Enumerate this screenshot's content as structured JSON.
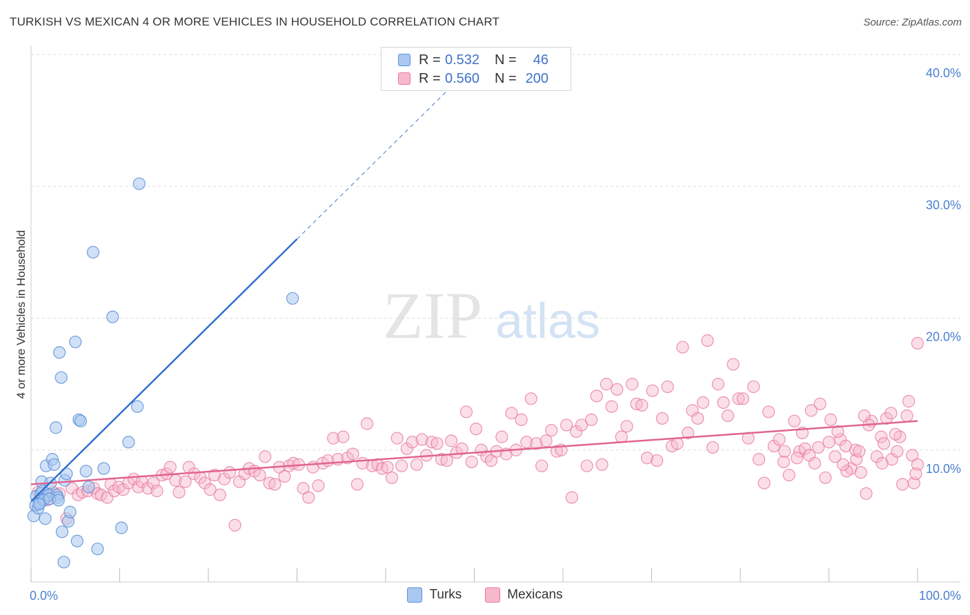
{
  "title": "TURKISH VS MEXICAN 4 OR MORE VEHICLES IN HOUSEHOLD CORRELATION CHART",
  "source": "Source: ZipAtlas.com",
  "watermark": {
    "zip": "ZIP",
    "atlas": "atlas"
  },
  "legend": {
    "rows": [
      {
        "r_label": "R =",
        "r_value": "0.532",
        "n_label": "N =",
        "n_value": "46"
      },
      {
        "r_label": "R =",
        "r_value": "0.560",
        "n_label": "N =",
        "n_value": "200"
      }
    ]
  },
  "bottom_legend": [
    "Turks",
    "Mexicans"
  ],
  "colors": {
    "turks_fill": "#aac8f0",
    "turks_stroke": "#5b8fd6",
    "turks_line": "#2f6fd0",
    "mexicans_fill": "#f7b8cb",
    "mexicans_stroke": "#e8799b",
    "mexicans_line": "#e0648e",
    "tick_text": "#4a7fd0",
    "grid": "#dddddd"
  },
  "chart_data": {
    "type": "scatter",
    "title": "TURKISH VS MEXICAN 4 OR MORE VEHICLES IN HOUSEHOLD CORRELATION CHART",
    "xlabel": "",
    "ylabel": "4 or more Vehicles in Household",
    "xlim": [
      0,
      100
    ],
    "ylim": [
      0,
      40
    ],
    "x_tick_labels": [
      "0.0%",
      "100.0%"
    ],
    "y_ticks": [
      10,
      20,
      30,
      40
    ],
    "y_tick_labels": [
      "10.0%",
      "20.0%",
      "30.0%",
      "40.0%"
    ],
    "grid": "horizontal dashed",
    "series": [
      {
        "name": "Turks",
        "R": 0.532,
        "N": 46,
        "trend": {
          "x0": 0,
          "y0": 6.1,
          "x1": 30,
          "y1": 26.0,
          "dashed_to": {
            "x": 100,
            "y": 72.5
          }
        },
        "points": [
          [
            0.3,
            5.0
          ],
          [
            0.5,
            5.8
          ],
          [
            0.6,
            6.5
          ],
          [
            0.8,
            5.6
          ],
          [
            1.0,
            6.0
          ],
          [
            1.1,
            6.7
          ],
          [
            1.2,
            7.6
          ],
          [
            1.3,
            6.9
          ],
          [
            1.5,
            6.3
          ],
          [
            1.6,
            4.8
          ],
          [
            1.7,
            8.8
          ],
          [
            1.9,
            6.5
          ],
          [
            2.0,
            6.6
          ],
          [
            2.2,
            7.5
          ],
          [
            2.4,
            9.3
          ],
          [
            2.6,
            8.9
          ],
          [
            2.8,
            11.7
          ],
          [
            2.9,
            6.6
          ],
          [
            3.0,
            6.4
          ],
          [
            3.2,
            17.4
          ],
          [
            3.4,
            15.5
          ],
          [
            3.5,
            3.8
          ],
          [
            3.7,
            1.5
          ],
          [
            3.8,
            7.7
          ],
          [
            4.0,
            8.2
          ],
          [
            4.2,
            4.6
          ],
          [
            4.4,
            5.3
          ],
          [
            5.0,
            18.2
          ],
          [
            5.2,
            3.1
          ],
          [
            5.4,
            12.3
          ],
          [
            5.6,
            12.2
          ],
          [
            6.2,
            8.4
          ],
          [
            6.5,
            7.2
          ],
          [
            7.0,
            25.0
          ],
          [
            7.5,
            2.5
          ],
          [
            8.2,
            8.6
          ],
          [
            9.2,
            20.1
          ],
          [
            10.2,
            4.1
          ],
          [
            11.0,
            10.6
          ],
          [
            12.0,
            13.3
          ],
          [
            12.2,
            30.2
          ],
          [
            29.5,
            21.5
          ],
          [
            1.4,
            6.2
          ],
          [
            2.1,
            6.3
          ],
          [
            3.1,
            6.2
          ],
          [
            0.9,
            5.9
          ]
        ]
      },
      {
        "name": "Mexicans",
        "R": 0.56,
        "N": 200,
        "trend": {
          "x0": 0,
          "y0": 7.4,
          "x1": 100,
          "y1": 12.2
        },
        "points": [
          [
            0.8,
            6.8
          ],
          [
            1.2,
            6.4
          ],
          [
            1.8,
            6.2
          ],
          [
            2.5,
            6.8
          ],
          [
            3.2,
            6.7
          ],
          [
            4.0,
            4.8
          ],
          [
            4.6,
            7.1
          ],
          [
            5.3,
            6.6
          ],
          [
            5.8,
            6.8
          ],
          [
            6.4,
            6.9
          ],
          [
            7.1,
            7.1
          ],
          [
            7.5,
            6.7
          ],
          [
            7.9,
            6.6
          ],
          [
            8.6,
            6.4
          ],
          [
            9.0,
            7.4
          ],
          [
            9.4,
            6.9
          ],
          [
            9.9,
            7.2
          ],
          [
            10.4,
            7.0
          ],
          [
            11.0,
            7.5
          ],
          [
            11.6,
            7.8
          ],
          [
            12.1,
            7.2
          ],
          [
            12.5,
            7.6
          ],
          [
            13.2,
            7.1
          ],
          [
            13.8,
            7.5
          ],
          [
            14.2,
            6.9
          ],
          [
            14.8,
            8.1
          ],
          [
            15.3,
            8.2
          ],
          [
            15.7,
            8.7
          ],
          [
            16.3,
            7.7
          ],
          [
            16.7,
            6.8
          ],
          [
            17.4,
            7.6
          ],
          [
            17.8,
            8.7
          ],
          [
            18.4,
            8.2
          ],
          [
            19.1,
            7.9
          ],
          [
            19.6,
            7.5
          ],
          [
            20.2,
            7.0
          ],
          [
            20.7,
            8.1
          ],
          [
            21.3,
            6.6
          ],
          [
            21.8,
            7.8
          ],
          [
            22.4,
            8.3
          ],
          [
            23.0,
            4.3
          ],
          [
            23.5,
            7.6
          ],
          [
            24.1,
            8.2
          ],
          [
            24.6,
            8.6
          ],
          [
            25.2,
            8.4
          ],
          [
            25.8,
            8.1
          ],
          [
            26.4,
            9.5
          ],
          [
            26.9,
            7.5
          ],
          [
            27.5,
            7.4
          ],
          [
            28.0,
            8.7
          ],
          [
            28.6,
            8.0
          ],
          [
            29.1,
            8.8
          ],
          [
            29.6,
            9.0
          ],
          [
            30.2,
            8.9
          ],
          [
            30.7,
            7.1
          ],
          [
            31.3,
            6.4
          ],
          [
            31.8,
            8.7
          ],
          [
            32.4,
            7.3
          ],
          [
            32.9,
            9.0
          ],
          [
            33.5,
            9.2
          ],
          [
            34.1,
            10.9
          ],
          [
            34.6,
            9.3
          ],
          [
            35.2,
            11.0
          ],
          [
            35.7,
            9.4
          ],
          [
            36.3,
            9.7
          ],
          [
            36.8,
            7.4
          ],
          [
            37.4,
            9.0
          ],
          [
            37.9,
            12.0
          ],
          [
            38.5,
            8.8
          ],
          [
            39.1,
            8.9
          ],
          [
            39.6,
            8.6
          ],
          [
            40.2,
            8.7
          ],
          [
            40.7,
            7.9
          ],
          [
            41.3,
            10.9
          ],
          [
            41.8,
            8.8
          ],
          [
            42.4,
            10.1
          ],
          [
            43.0,
            10.6
          ],
          [
            43.5,
            8.9
          ],
          [
            44.1,
            10.8
          ],
          [
            44.6,
            9.6
          ],
          [
            45.2,
            10.6
          ],
          [
            45.8,
            10.5
          ],
          [
            46.3,
            9.3
          ],
          [
            46.9,
            9.2
          ],
          [
            47.4,
            10.7
          ],
          [
            48.0,
            9.8
          ],
          [
            48.6,
            10.1
          ],
          [
            49.1,
            12.9
          ],
          [
            49.7,
            9.1
          ],
          [
            50.2,
            11.6
          ],
          [
            50.8,
            10.0
          ],
          [
            51.4,
            9.5
          ],
          [
            51.9,
            9.2
          ],
          [
            52.5,
            9.9
          ],
          [
            53.1,
            11.0
          ],
          [
            53.6,
            9.7
          ],
          [
            54.2,
            12.8
          ],
          [
            54.7,
            10.0
          ],
          [
            55.3,
            12.3
          ],
          [
            55.9,
            10.6
          ],
          [
            56.4,
            13.9
          ],
          [
            57.0,
            10.5
          ],
          [
            57.6,
            8.8
          ],
          [
            58.1,
            10.7
          ],
          [
            58.7,
            11.5
          ],
          [
            59.3,
            9.9
          ],
          [
            59.8,
            10.0
          ],
          [
            60.4,
            11.9
          ],
          [
            61.0,
            6.4
          ],
          [
            61.5,
            11.4
          ],
          [
            62.1,
            11.9
          ],
          [
            62.7,
            8.8
          ],
          [
            63.2,
            12.3
          ],
          [
            63.8,
            14.1
          ],
          [
            64.4,
            8.9
          ],
          [
            64.9,
            15.0
          ],
          [
            65.5,
            13.3
          ],
          [
            66.1,
            14.6
          ],
          [
            66.6,
            11.0
          ],
          [
            67.2,
            11.8
          ],
          [
            67.8,
            15.0
          ],
          [
            68.3,
            13.5
          ],
          [
            68.9,
            13.4
          ],
          [
            69.5,
            9.4
          ],
          [
            70.1,
            14.5
          ],
          [
            70.6,
            9.2
          ],
          [
            71.2,
            12.4
          ],
          [
            71.8,
            14.8
          ],
          [
            72.3,
            10.3
          ],
          [
            72.9,
            10.5
          ],
          [
            73.5,
            17.8
          ],
          [
            74.1,
            11.3
          ],
          [
            74.6,
            13.0
          ],
          [
            75.2,
            12.4
          ],
          [
            75.8,
            13.6
          ],
          [
            76.3,
            18.3
          ],
          [
            76.9,
            10.2
          ],
          [
            77.5,
            15.0
          ],
          [
            78.1,
            13.6
          ],
          [
            78.6,
            12.6
          ],
          [
            79.2,
            16.5
          ],
          [
            79.8,
            13.9
          ],
          [
            80.3,
            13.9
          ],
          [
            80.9,
            10.9
          ],
          [
            81.5,
            14.8
          ],
          [
            82.1,
            9.3
          ],
          [
            82.7,
            7.5
          ],
          [
            83.2,
            12.9
          ],
          [
            83.8,
            10.3
          ],
          [
            84.4,
            10.8
          ],
          [
            84.9,
            9.1
          ],
          [
            85.5,
            8.1
          ],
          [
            86.1,
            12.2
          ],
          [
            86.7,
            9.9
          ],
          [
            87.3,
            10.1
          ],
          [
            87.8,
            9.6
          ],
          [
            88.4,
            9.0
          ],
          [
            89.0,
            13.5
          ],
          [
            89.6,
            7.9
          ],
          [
            90.2,
            12.3
          ],
          [
            90.7,
            9.5
          ],
          [
            91.3,
            10.8
          ],
          [
            91.9,
            10.3
          ],
          [
            92.5,
            8.6
          ],
          [
            93.1,
            9.3
          ],
          [
            93.6,
            8.3
          ],
          [
            94.2,
            6.7
          ],
          [
            94.8,
            12.2
          ],
          [
            95.4,
            9.5
          ],
          [
            95.9,
            11.0
          ],
          [
            96.5,
            12.4
          ],
          [
            97.1,
            9.3
          ],
          [
            97.7,
            9.9
          ],
          [
            98.3,
            7.4
          ],
          [
            98.8,
            12.6
          ],
          [
            99.4,
            9.6
          ],
          [
            100.0,
            8.9
          ],
          [
            85.0,
            9.9
          ],
          [
            87.0,
            11.3
          ],
          [
            88.0,
            13.0
          ],
          [
            91.0,
            11.4
          ],
          [
            92.0,
            8.4
          ],
          [
            93.0,
            10.0
          ],
          [
            94.0,
            12.6
          ],
          [
            96.0,
            9.0
          ],
          [
            97.0,
            12.8
          ],
          [
            98.0,
            11.0
          ],
          [
            99.0,
            13.7
          ],
          [
            99.6,
            7.5
          ],
          [
            97.5,
            11.2
          ],
          [
            96.2,
            10.5
          ],
          [
            94.5,
            11.9
          ],
          [
            93.4,
            9.9
          ],
          [
            91.6,
            8.9
          ],
          [
            90.0,
            10.6
          ],
          [
            88.8,
            10.2
          ],
          [
            86.4,
            9.4
          ],
          [
            100.0,
            18.1
          ],
          [
            99.8,
            8.2
          ]
        ]
      }
    ]
  }
}
